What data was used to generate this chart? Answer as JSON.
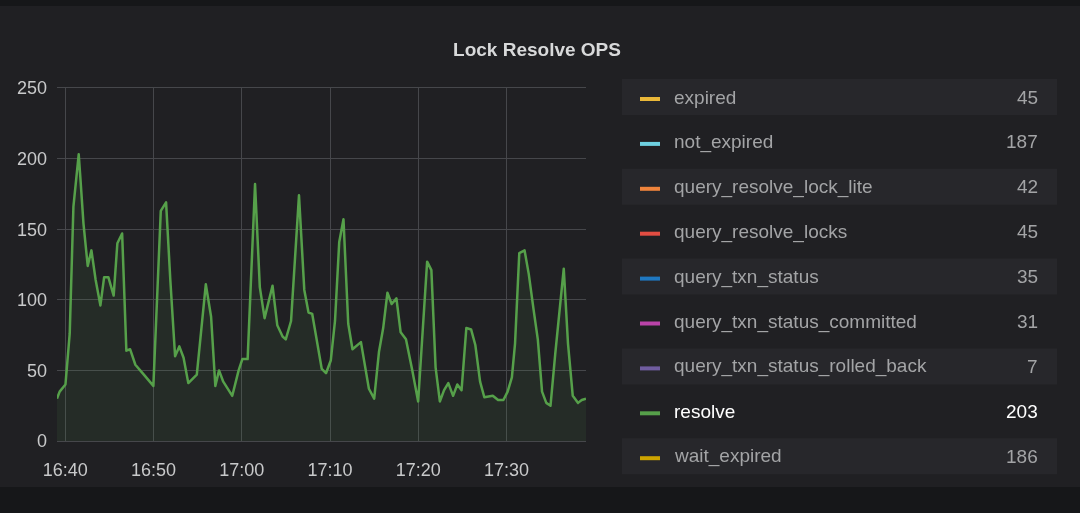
{
  "chart_data": {
    "type": "area",
    "title": "Lock Resolve OPS",
    "xlim": [
      16.651,
      17.65
    ],
    "xticks": [
      {
        "value": 16.6667,
        "label": "16:40"
      },
      {
        "value": 16.8333,
        "label": "16:50"
      },
      {
        "value": 17,
        "label": "17:00"
      },
      {
        "value": 17.1667,
        "label": "17:10"
      },
      {
        "value": 17.3333,
        "label": "17:20"
      },
      {
        "value": 17.5,
        "label": "17:30"
      }
    ],
    "ylim": [
      0,
      250
    ],
    "yticks": [
      0,
      50,
      100,
      150,
      200,
      250
    ],
    "grid": true,
    "legend": "right",
    "annotations": [
      "45",
      "187",
      "42",
      "45",
      "35",
      "31",
      "7",
      "203",
      "186"
    ],
    "series": [
      {
        "name": "expired",
        "color": "#eab839"
      },
      {
        "name": "not_expired",
        "color": "#6ed0e0"
      },
      {
        "name": "query_resolve_lock_lite",
        "color": "#ef843c"
      },
      {
        "name": "query_resolve_locks",
        "color": "#e24d42"
      },
      {
        "name": "query_txn_status",
        "color": "#1f78c1"
      },
      {
        "name": "query_txn_status_committed",
        "color": "#ba43a9"
      },
      {
        "name": "query_txn_status_rolled_back",
        "color": "#705da0"
      },
      {
        "name": "resolve",
        "color": "#56a04a",
        "x": [
          16.651,
          16.656,
          16.667,
          16.675,
          16.682,
          16.692,
          16.695,
          16.701,
          16.709,
          16.716,
          16.724,
          16.733,
          16.74,
          16.748,
          16.758,
          16.765,
          16.774,
          16.782,
          16.789,
          16.799,
          16.815,
          16.833,
          16.847,
          16.857,
          16.865,
          16.874,
          16.882,
          16.89,
          16.899,
          16.915,
          16.932,
          16.942,
          16.95,
          16.957,
          16.965,
          16.982,
          16.994,
          17.001,
          17.011,
          17.025,
          17.034,
          17.043,
          17.058,
          17.067,
          17.077,
          17.083,
          17.093,
          17.108,
          17.118,
          17.126,
          17.133,
          17.151,
          17.159,
          17.168,
          17.176,
          17.184,
          17.192,
          17.201,
          17.209,
          17.225,
          17.24,
          17.25,
          17.259,
          17.267,
          17.275,
          17.283,
          17.292,
          17.3,
          17.31,
          17.322,
          17.333,
          17.35,
          17.358,
          17.366,
          17.374,
          17.382,
          17.39,
          17.399,
          17.407,
          17.415,
          17.424,
          17.433,
          17.441,
          17.45,
          17.458,
          17.474,
          17.484,
          17.494,
          17.502,
          17.51,
          17.516,
          17.524,
          17.534,
          17.542,
          17.551,
          17.559,
          17.567,
          17.575,
          17.583,
          17.592,
          17.608,
          17.616,
          17.625,
          17.635,
          17.642,
          17.65
        ],
        "values": [
          30,
          35,
          40,
          76,
          166,
          203,
          187,
          154,
          124,
          135,
          114,
          96,
          116,
          116,
          103,
          140,
          147,
          64,
          65,
          54,
          47,
          39,
          163,
          169,
          114,
          60,
          67,
          59,
          41,
          47,
          111,
          88,
          39,
          50,
          42,
          32,
          50,
          58,
          58,
          182,
          109,
          87,
          110,
          82,
          74,
          72,
          85,
          174,
          107,
          91,
          90,
          51,
          48,
          57,
          85,
          141,
          157,
          83,
          65,
          70,
          37,
          30,
          63,
          80,
          105,
          97,
          101,
          77,
          72,
          50,
          28,
          127,
          121,
          52,
          28,
          36,
          41,
          32,
          40,
          36,
          80,
          79,
          68,
          42,
          31,
          32,
          29,
          29,
          35,
          45,
          69,
          133,
          135,
          118,
          93,
          72,
          35,
          27,
          25,
          62,
          122,
          69,
          32,
          27,
          29,
          30
        ]
      },
      {
        "name": "wait_expired",
        "color": "#cca300"
      }
    ]
  }
}
